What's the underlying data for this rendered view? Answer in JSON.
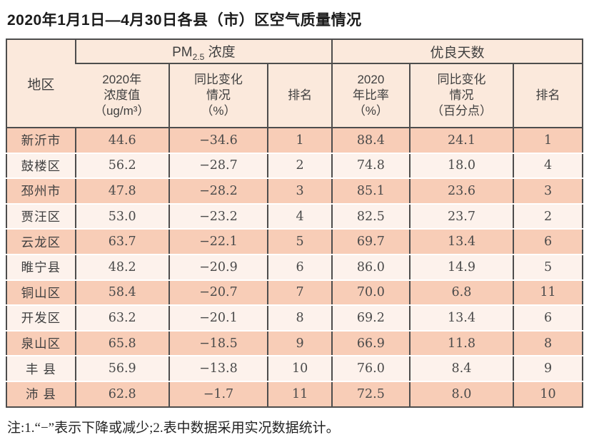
{
  "title": "2020年1月1日—4月30日各县（市）区空气质量情况",
  "note": "注:1.“−”表示下降或减少;2.表中数据采用实况数据统计。",
  "colors": {
    "row_shaded": "#f8cdb7",
    "row_light": "#fdf2ec",
    "header_bg": "#fbe9dc",
    "border": "#4d4d4d",
    "text": "#3f3f3f",
    "title_text": "#1b1b1b"
  },
  "table": {
    "region_header": "地区",
    "group_pm": {
      "main": "PM",
      "sub": "2.5",
      "rest": " 浓度"
    },
    "group_good": "优良天数",
    "subheaders": [
      [
        "2020年",
        "浓度值",
        "（ug/m³）"
      ],
      [
        "同比变化",
        "情况",
        "（%）"
      ],
      [
        "排名"
      ],
      [
        "2020",
        "年比率",
        "（%）"
      ],
      [
        "同比变化",
        "情况",
        "（百分点）"
      ],
      [
        "排名"
      ]
    ],
    "rows": [
      [
        "新沂市",
        "44.6",
        "−34.6",
        "1",
        "88.4",
        "24.1",
        "1"
      ],
      [
        "鼓楼区",
        "56.2",
        "−28.7",
        "2",
        "74.8",
        "18.0",
        "4"
      ],
      [
        "邳州市",
        "47.8",
        "−28.2",
        "3",
        "85.1",
        "23.6",
        "3"
      ],
      [
        "贾汪区",
        "53.0",
        "−23.2",
        "4",
        "82.5",
        "23.7",
        "2"
      ],
      [
        "云龙区",
        "63.7",
        "−22.1",
        "5",
        "69.7",
        "13.4",
        "6"
      ],
      [
        "睢宁县",
        "48.2",
        "−20.9",
        "6",
        "86.0",
        "14.9",
        "5"
      ],
      [
        "铜山区",
        "58.4",
        "−20.7",
        "7",
        "70.0",
        "6.8",
        "11"
      ],
      [
        "开发区",
        "63.2",
        "−20.1",
        "8",
        "69.2",
        "13.4",
        "6"
      ],
      [
        "泉山区",
        "65.8",
        "−18.5",
        "9",
        "66.9",
        "11.8",
        "8"
      ],
      [
        "丰 县",
        "56.9",
        "−13.8",
        "10",
        "76.0",
        "8.4",
        "9"
      ],
      [
        "沛 县",
        "62.8",
        "−1.7",
        "11",
        "72.5",
        "8.0",
        "10"
      ]
    ]
  },
  "chart_data": {
    "type": "table",
    "title": "2020年1月1日—4月30日各县（市）区空气质量情况",
    "columns": [
      "地区",
      "PM2.5浓度 2020年浓度值（ug/m³）",
      "PM2.5浓度 同比变化情况（%）",
      "PM2.5浓度 排名",
      "优良天数 2020年比率（%）",
      "优良天数 同比变化情况（百分点）",
      "优良天数 排名"
    ],
    "rows": [
      [
        "新沂市",
        44.6,
        -34.6,
        1,
        88.4,
        24.1,
        1
      ],
      [
        "鼓楼区",
        56.2,
        -28.7,
        2,
        74.8,
        18.0,
        4
      ],
      [
        "邳州市",
        47.8,
        -28.2,
        3,
        85.1,
        23.6,
        3
      ],
      [
        "贾汪区",
        53.0,
        -23.2,
        4,
        82.5,
        23.7,
        2
      ],
      [
        "云龙区",
        63.7,
        -22.1,
        5,
        69.7,
        13.4,
        6
      ],
      [
        "睢宁县",
        48.2,
        -20.9,
        6,
        86.0,
        14.9,
        5
      ],
      [
        "铜山区",
        58.4,
        -20.7,
        7,
        70.0,
        6.8,
        11
      ],
      [
        "开发区",
        63.2,
        -20.1,
        8,
        69.2,
        13.4,
        6
      ],
      [
        "泉山区",
        65.8,
        -18.5,
        9,
        66.9,
        11.8,
        8
      ],
      [
        "丰县",
        56.9,
        -13.8,
        10,
        76.0,
        8.4,
        9
      ],
      [
        "沛县",
        62.8,
        -1.7,
        11,
        72.5,
        8.0,
        10
      ]
    ],
    "annotation": "注:1.“−”表示下降或减少;2.表中数据采用实况数据统计。"
  }
}
